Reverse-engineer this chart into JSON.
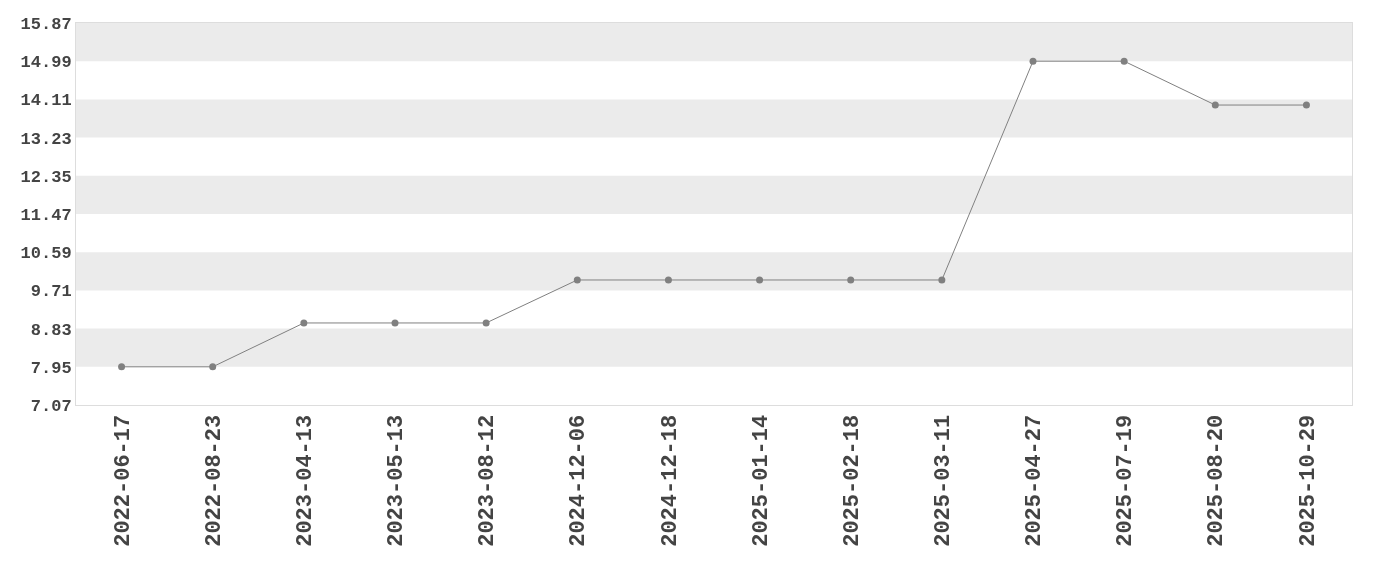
{
  "chart_data": {
    "type": "line",
    "categories": [
      "2022-06-17",
      "2022-08-23",
      "2023-04-13",
      "2023-05-13",
      "2023-08-12",
      "2024-12-06",
      "2024-12-18",
      "2025-01-14",
      "2025-02-18",
      "2025-03-11",
      "2025-04-27",
      "2025-07-19",
      "2025-08-20",
      "2025-10-29"
    ],
    "series": [
      {
        "color": "#808080",
        "values": [
          7.95,
          7.95,
          8.96,
          8.96,
          8.96,
          9.95,
          9.95,
          9.95,
          9.95,
          9.95,
          14.99,
          14.99,
          13.98,
          13.98
        ]
      }
    ],
    "ylim": [
      7.07,
      15.87
    ],
    "yticks": [
      7.07,
      7.95,
      8.83,
      9.71,
      10.59,
      11.47,
      12.35,
      13.23,
      14.11,
      14.99,
      15.87
    ],
    "bands": [
      {
        "axis": "y",
        "from": 14.99,
        "to": 15.87,
        "color": "#ebebeb"
      },
      {
        "axis": "y",
        "from": 13.23,
        "to": 14.11,
        "color": "#ebebeb"
      },
      {
        "axis": "y",
        "from": 11.47,
        "to": 12.35,
        "color": "#ebebeb"
      },
      {
        "axis": "y",
        "from": 9.71,
        "to": 10.59,
        "color": "#ebebeb"
      },
      {
        "axis": "y",
        "from": 7.95,
        "to": 8.83,
        "color": "#ebebeb"
      }
    ],
    "grid": false,
    "marker": "circle",
    "line_style": "solid"
  }
}
